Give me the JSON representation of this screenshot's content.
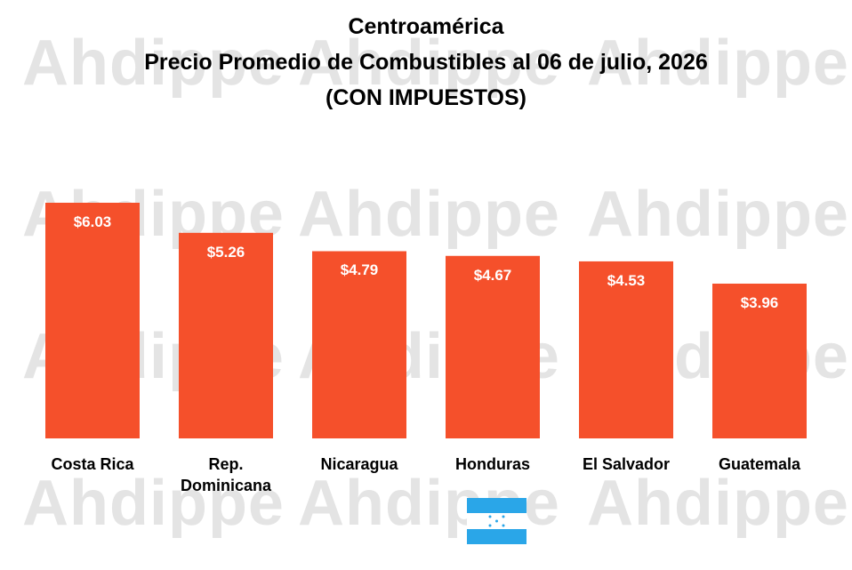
{
  "chart_data": {
    "type": "bar",
    "title": [
      "Centroamérica",
      "Precio Promedio de Combustibles al 06 de julio, 2026",
      "(CON IMPUESTOS)"
    ],
    "categories": [
      "Costa Rica",
      "Rep. Dominicana",
      "Nicaragua",
      "Honduras",
      "El Salvador",
      "Guatemala"
    ],
    "values": [
      6.03,
      5.26,
      4.79,
      4.67,
      4.53,
      3.96
    ],
    "value_labels": [
      "$6.03",
      "$5.26",
      "$4.79",
      "$4.67",
      "$4.53",
      "$3.96"
    ],
    "color": "#f5502b",
    "watermark": "Ahdippe"
  }
}
